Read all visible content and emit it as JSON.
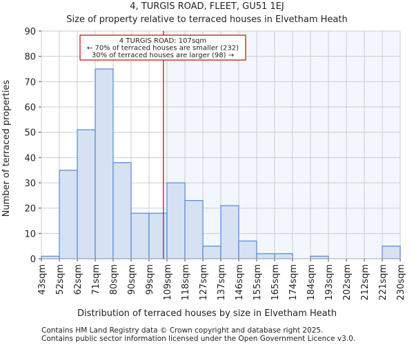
{
  "chart_data": {
    "type": "bar",
    "title": "4, TURGIS ROAD, FLEET, GU51 1EJ",
    "subtitle": "Size of property relative to terraced houses in Elvetham Heath",
    "xlabel": "Distribution of terraced houses by size in Elvetham Heath",
    "ylabel": "Number of terraced properties",
    "ylim": [
      0,
      90
    ],
    "yticks": [
      0,
      10,
      20,
      30,
      40,
      50,
      60,
      70,
      80,
      90
    ],
    "bin_edges": [
      "43sqm",
      "52sqm",
      "62sqm",
      "71sqm",
      "80sqm",
      "90sqm",
      "99sqm",
      "109sqm",
      "118sqm",
      "127sqm",
      "137sqm",
      "146sqm",
      "155sqm",
      "165sqm",
      "174sqm",
      "184sqm",
      "193sqm",
      "202sqm",
      "212sqm",
      "221sqm",
      "230sqm"
    ],
    "values": [
      1,
      35,
      51,
      75,
      38,
      18,
      18,
      30,
      23,
      5,
      21,
      7,
      2,
      2,
      0,
      1,
      0,
      0,
      0,
      5
    ],
    "marker_position_bins": 6.8,
    "grid": true,
    "annotation": [
      "4 TURGIS ROAD: 107sqm",
      "← 70% of terraced houses are smaller (232)",
      "30% of terraced houses are larger (98) →"
    ],
    "colors": {
      "bar_fill": "#d6e2f3",
      "bar_edge": "#5b8fd6",
      "highlight_bg": "#f3f6fd",
      "marker": "#cc0000",
      "grid": "#cccccc"
    }
  },
  "footer": [
    "Contains HM Land Registry data © Crown copyright and database right 2025.",
    "Contains public sector information licensed under the Open Government Licence v3.0."
  ]
}
